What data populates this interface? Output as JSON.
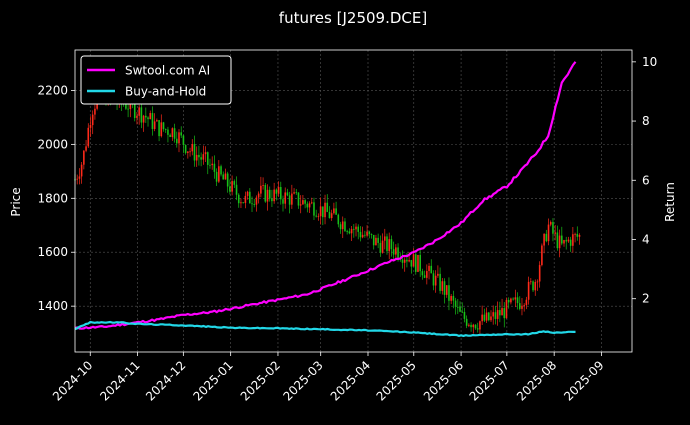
{
  "chart_data": {
    "type": "line",
    "title": "futures [J2509.DCE]",
    "ylabel_left": "Price",
    "ylabel_right": "Return",
    "xlabel": "",
    "x_ticks": [
      "2024-10",
      "2024-11",
      "2024-12",
      "2025-01",
      "2025-02",
      "2025-03",
      "2025-04",
      "2025-05",
      "2025-06",
      "2025-07",
      "2025-08",
      "2025-09"
    ],
    "x_range": [
      "2024-09-21",
      "2025-09-21"
    ],
    "y_left_ticks": [
      1400,
      1600,
      1800,
      2000,
      2200
    ],
    "y_left_range": [
      1230,
      2350
    ],
    "y_right_ticks": [
      2,
      4,
      6,
      8,
      10
    ],
    "y_right_range": [
      0.2,
      10.4
    ],
    "grid": true,
    "legend_position": "top-left",
    "candlestick_colors": {
      "up": "#ff2a1a",
      "down": "#18c018"
    },
    "series": [
      {
        "name": "Swtool.com AI",
        "color": "#ff00ff",
        "axis": "right",
        "points": [
          [
            "2024-09-21",
            1.0
          ],
          [
            "2024-10-10",
            1.05
          ],
          [
            "2024-10-25",
            1.15
          ],
          [
            "2024-11-15",
            1.3
          ],
          [
            "2024-12-01",
            1.45
          ],
          [
            "2024-12-20",
            1.55
          ],
          [
            "2025-01-05",
            1.7
          ],
          [
            "2025-01-20",
            1.85
          ],
          [
            "2025-02-05",
            2.0
          ],
          [
            "2025-02-20",
            2.15
          ],
          [
            "2025-03-05",
            2.4
          ],
          [
            "2025-03-20",
            2.7
          ],
          [
            "2025-04-01",
            2.95
          ],
          [
            "2025-04-15",
            3.25
          ],
          [
            "2025-05-01",
            3.55
          ],
          [
            "2025-05-15",
            3.95
          ],
          [
            "2025-06-01",
            4.55
          ],
          [
            "2025-06-15",
            5.3
          ],
          [
            "2025-07-01",
            5.8
          ],
          [
            "2025-07-10",
            6.3
          ],
          [
            "2025-07-20",
            6.9
          ],
          [
            "2025-07-28",
            7.5
          ],
          [
            "2025-08-02",
            8.5
          ],
          [
            "2025-08-06",
            9.3
          ],
          [
            "2025-08-10",
            9.6
          ],
          [
            "2025-08-15",
            10.0
          ]
        ]
      },
      {
        "name": "Buy-and-Hold",
        "color": "#22d8e8",
        "axis": "right",
        "points": [
          [
            "2024-09-21",
            0.98
          ],
          [
            "2024-10-01",
            1.2
          ],
          [
            "2024-10-20",
            1.2
          ],
          [
            "2024-11-01",
            1.15
          ],
          [
            "2024-12-01",
            1.1
          ],
          [
            "2025-01-01",
            1.02
          ],
          [
            "2025-02-01",
            1.0
          ],
          [
            "2025-03-01",
            0.97
          ],
          [
            "2025-04-01",
            0.93
          ],
          [
            "2025-05-01",
            0.86
          ],
          [
            "2025-06-01",
            0.75
          ],
          [
            "2025-06-15",
            0.78
          ],
          [
            "2025-07-01",
            0.8
          ],
          [
            "2025-07-15",
            0.8
          ],
          [
            "2025-07-25",
            0.9
          ],
          [
            "2025-08-01",
            0.85
          ],
          [
            "2025-08-15",
            0.88
          ]
        ]
      }
    ],
    "price_path": [
      [
        "2024-09-21",
        1870
      ],
      [
        "2024-09-26",
        1940
      ],
      [
        "2024-10-02",
        2130
      ],
      [
        "2024-10-08",
        2200
      ],
      [
        "2024-10-15",
        2160
      ],
      [
        "2024-10-25",
        2150
      ],
      [
        "2024-11-05",
        2110
      ],
      [
        "2024-11-15",
        2060
      ],
      [
        "2024-11-25",
        2050
      ],
      [
        "2024-12-05",
        1980
      ],
      [
        "2024-12-15",
        1940
      ],
      [
        "2024-12-25",
        1880
      ],
      [
        "2025-01-10",
        1790
      ],
      [
        "2025-01-20",
        1820
      ],
      [
        "2025-02-01",
        1810
      ],
      [
        "2025-02-10",
        1800
      ],
      [
        "2025-02-25",
        1770
      ],
      [
        "2025-03-10",
        1730
      ],
      [
        "2025-03-25",
        1680
      ],
      [
        "2025-04-05",
        1640
      ],
      [
        "2025-04-20",
        1610
      ],
      [
        "2025-05-05",
        1550
      ],
      [
        "2025-05-20",
        1470
      ],
      [
        "2025-06-01",
        1360
      ],
      [
        "2025-06-10",
        1340
      ],
      [
        "2025-06-20",
        1350
      ],
      [
        "2025-07-01",
        1390
      ],
      [
        "2025-07-10",
        1420
      ],
      [
        "2025-07-20",
        1500
      ],
      [
        "2025-07-28",
        1700
      ],
      [
        "2025-08-01",
        1660
      ],
      [
        "2025-08-06",
        1620
      ],
      [
        "2025-08-12",
        1650
      ],
      [
        "2025-08-18",
        1660
      ]
    ]
  }
}
